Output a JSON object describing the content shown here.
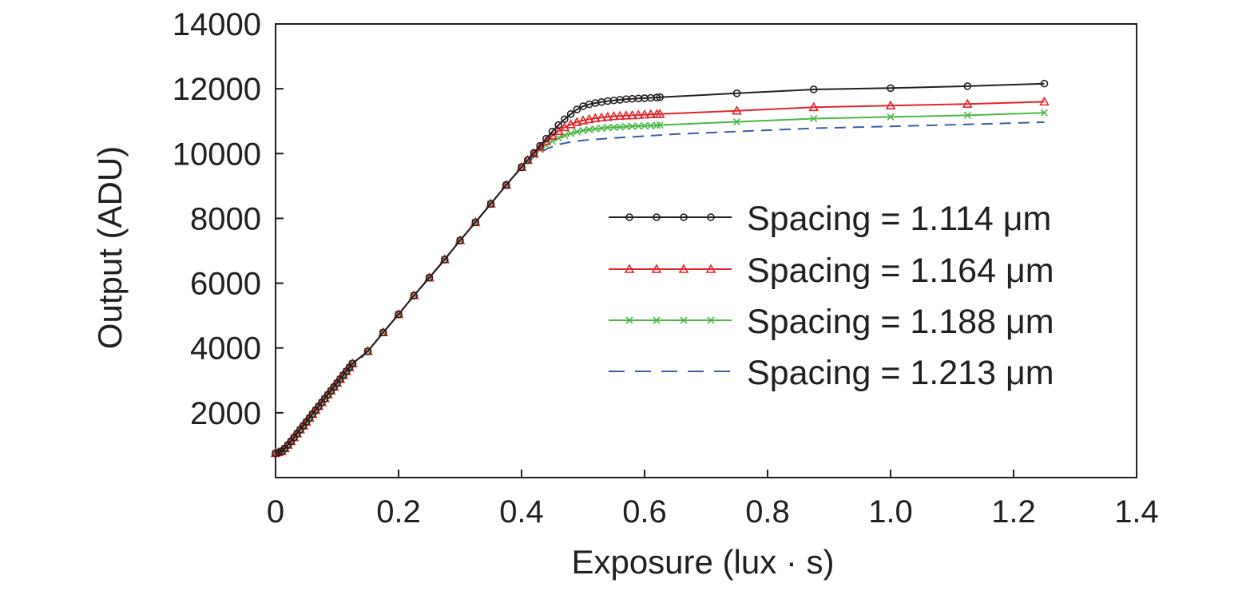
{
  "chart_data": {
    "type": "line",
    "title": "",
    "xlabel": "Exposure (lux · s)",
    "ylabel": "Output (ADU)",
    "xlim": [
      0,
      1.4
    ],
    "ylim": [
      0,
      14000
    ],
    "xticks": [
      0,
      0.2,
      0.4,
      0.6,
      0.8,
      1.0,
      1.2,
      1.4
    ],
    "xtick_labels": [
      "0",
      "0.2",
      "0.4",
      "0.6",
      "0.8",
      "1.0",
      "1.2",
      "1.4"
    ],
    "yticks": [
      2000,
      4000,
      6000,
      8000,
      10000,
      12000,
      14000
    ],
    "ytick_labels": [
      "2000",
      "4000",
      "6000",
      "8000",
      "10000",
      "12000",
      "14000"
    ],
    "grid": false,
    "legend_position": "right",
    "series": [
      {
        "name": "Spacing = 1.114 μm",
        "color": "#231f20",
        "marker": "circle",
        "dash": "solid",
        "x": [
          0,
          0.005,
          0.01,
          0.015,
          0.02,
          0.025,
          0.03,
          0.035,
          0.04,
          0.045,
          0.05,
          0.055,
          0.06,
          0.065,
          0.07,
          0.075,
          0.08,
          0.085,
          0.09,
          0.095,
          0.1,
          0.105,
          0.11,
          0.115,
          0.12,
          0.125,
          0.15,
          0.175,
          0.2,
          0.225,
          0.25,
          0.275,
          0.3,
          0.325,
          0.35,
          0.375,
          0.4,
          0.41,
          0.42,
          0.43,
          0.44,
          0.45,
          0.46,
          0.47,
          0.48,
          0.49,
          0.5,
          0.51,
          0.52,
          0.53,
          0.54,
          0.55,
          0.56,
          0.57,
          0.58,
          0.59,
          0.6,
          0.61,
          0.62,
          0.625,
          0.75,
          0.875,
          1.0,
          1.125,
          1.25
        ],
        "y": [
          750,
          780,
          810,
          900,
          1010,
          1120,
          1240,
          1360,
          1480,
          1600,
          1720,
          1840,
          1960,
          2080,
          2200,
          2320,
          2440,
          2560,
          2680,
          2800,
          2920,
          3040,
          3160,
          3280,
          3400,
          3520,
          3900,
          4480,
          5040,
          5620,
          6170,
          6730,
          7320,
          7880,
          8450,
          9030,
          9580,
          9800,
          10020,
          10240,
          10460,
          10680,
          10880,
          11060,
          11220,
          11360,
          11460,
          11520,
          11560,
          11590,
          11620,
          11640,
          11660,
          11680,
          11690,
          11700,
          11710,
          11720,
          11730,
          11740,
          11860,
          11980,
          12020,
          12080,
          12160
        ]
      },
      {
        "name": "Spacing = 1.164 μm",
        "color": "#e2252c",
        "marker": "triangle",
        "dash": "solid",
        "x": [
          0,
          0.005,
          0.01,
          0.015,
          0.02,
          0.025,
          0.03,
          0.035,
          0.04,
          0.045,
          0.05,
          0.055,
          0.06,
          0.065,
          0.07,
          0.075,
          0.08,
          0.085,
          0.09,
          0.095,
          0.1,
          0.105,
          0.11,
          0.115,
          0.12,
          0.125,
          0.15,
          0.175,
          0.2,
          0.225,
          0.25,
          0.275,
          0.3,
          0.325,
          0.35,
          0.375,
          0.4,
          0.41,
          0.42,
          0.43,
          0.44,
          0.45,
          0.46,
          0.47,
          0.48,
          0.49,
          0.5,
          0.51,
          0.52,
          0.53,
          0.54,
          0.55,
          0.56,
          0.57,
          0.58,
          0.59,
          0.6,
          0.61,
          0.62,
          0.625,
          0.75,
          0.875,
          1.0,
          1.125,
          1.25
        ],
        "y": [
          750,
          780,
          810,
          900,
          1010,
          1120,
          1240,
          1360,
          1480,
          1600,
          1720,
          1840,
          1960,
          2080,
          2200,
          2320,
          2440,
          2560,
          2680,
          2800,
          2920,
          3040,
          3160,
          3280,
          3400,
          3520,
          3900,
          4480,
          5040,
          5620,
          6170,
          6730,
          7320,
          7880,
          8450,
          9030,
          9580,
          9800,
          10000,
          10200,
          10380,
          10550,
          10690,
          10810,
          10900,
          10970,
          11020,
          11060,
          11090,
          11110,
          11130,
          11150,
          11160,
          11170,
          11180,
          11190,
          11200,
          11210,
          11215,
          11220,
          11320,
          11430,
          11480,
          11530,
          11600
        ]
      },
      {
        "name": "Spacing = 1.188 μm",
        "color": "#4db848",
        "marker": "x",
        "dash": "solid",
        "x": [
          0,
          0.005,
          0.01,
          0.015,
          0.02,
          0.025,
          0.03,
          0.035,
          0.04,
          0.045,
          0.05,
          0.055,
          0.06,
          0.065,
          0.07,
          0.075,
          0.08,
          0.085,
          0.09,
          0.095,
          0.1,
          0.105,
          0.11,
          0.115,
          0.12,
          0.125,
          0.15,
          0.175,
          0.2,
          0.225,
          0.25,
          0.275,
          0.3,
          0.325,
          0.35,
          0.375,
          0.4,
          0.41,
          0.42,
          0.43,
          0.44,
          0.45,
          0.46,
          0.47,
          0.48,
          0.49,
          0.5,
          0.51,
          0.52,
          0.53,
          0.54,
          0.55,
          0.56,
          0.57,
          0.58,
          0.59,
          0.6,
          0.61,
          0.62,
          0.625,
          0.75,
          0.875,
          1.0,
          1.125,
          1.25
        ],
        "y": [
          750,
          780,
          810,
          900,
          1010,
          1120,
          1240,
          1360,
          1480,
          1600,
          1720,
          1840,
          1960,
          2080,
          2200,
          2320,
          2440,
          2560,
          2680,
          2800,
          2920,
          3040,
          3160,
          3280,
          3400,
          3520,
          3900,
          4480,
          5040,
          5620,
          6170,
          6730,
          7320,
          7880,
          8450,
          9030,
          9580,
          9780,
          9960,
          10120,
          10260,
          10380,
          10480,
          10560,
          10620,
          10670,
          10710,
          10740,
          10760,
          10780,
          10800,
          10810,
          10820,
          10830,
          10840,
          10850,
          10855,
          10860,
          10870,
          10880,
          10980,
          11080,
          11130,
          11180,
          11260
        ]
      },
      {
        "name": "Spacing = 1.213 μm",
        "color": "#3b5daa",
        "marker": "none",
        "dash": "dashed",
        "x": [
          0,
          0.05,
          0.1,
          0.15,
          0.2,
          0.25,
          0.3,
          0.35,
          0.4,
          0.42,
          0.44,
          0.46,
          0.48,
          0.5,
          0.55,
          0.6,
          0.65,
          0.75,
          0.875,
          1.0,
          1.125,
          1.25
        ],
        "y": [
          750,
          1720,
          2920,
          3900,
          5040,
          6170,
          7320,
          8450,
          9580,
          9900,
          10140,
          10280,
          10360,
          10410,
          10480,
          10540,
          10600,
          10680,
          10780,
          10840,
          10900,
          10970
        ]
      }
    ]
  }
}
